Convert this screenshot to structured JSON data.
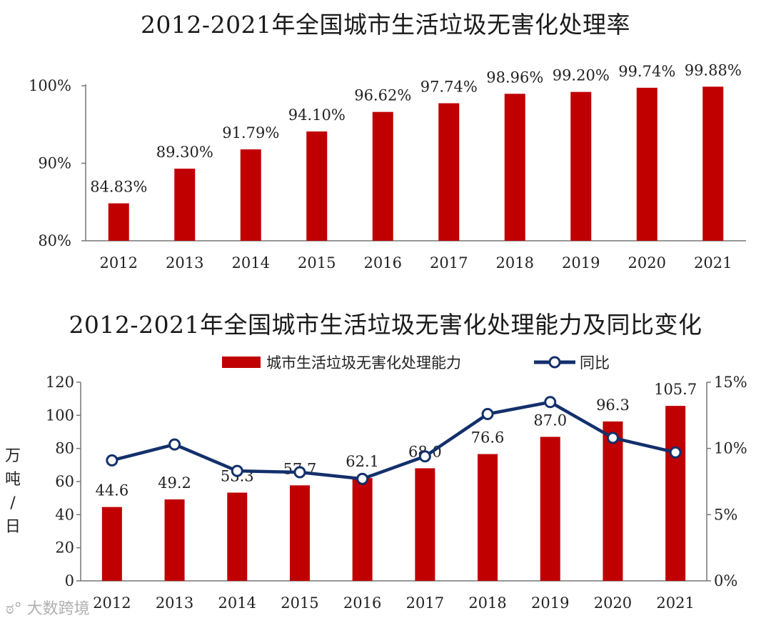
{
  "chart_data": [
    {
      "type": "bar",
      "title": "2012-2021年全国城市生活垃圾无害化处理率",
      "categories": [
        "2012",
        "2013",
        "2014",
        "2015",
        "2016",
        "2017",
        "2018",
        "2019",
        "2020",
        "2021"
      ],
      "values": [
        84.83,
        89.3,
        91.79,
        94.1,
        96.62,
        97.74,
        98.96,
        99.2,
        99.74,
        99.88
      ],
      "data_labels": [
        "84.83%",
        "89.30%",
        "91.79%",
        "94.10%",
        "96.62%",
        "97.74%",
        "98.96%",
        "99.20%",
        "99.74%",
        "99.88%"
      ],
      "ylim": [
        80,
        100
      ],
      "yticks": [
        80,
        90,
        100
      ],
      "ytick_labels": [
        "80%",
        "90%",
        "100%"
      ],
      "grid": false,
      "bar_color": "#C00000"
    },
    {
      "type": "bar+line",
      "title": "2012-2021年全国城市生活垃圾无害化处理能力及同比变化",
      "categories": [
        "2012",
        "2013",
        "2014",
        "2015",
        "2016",
        "2017",
        "2018",
        "2019",
        "2020",
        "2021"
      ],
      "series": [
        {
          "name": "城市生活垃圾无害化处理能力",
          "type": "bar",
          "axis": "left",
          "values": [
            44.6,
            49.2,
            53.3,
            57.7,
            62.1,
            68.0,
            76.6,
            87.0,
            96.3,
            105.7
          ],
          "data_labels": [
            "44.6",
            "49.2",
            "53.3",
            "57.7",
            "62.1",
            "68.0",
            "76.6",
            "87.0",
            "96.3",
            "105.7"
          ],
          "color": "#C00000"
        },
        {
          "name": "同比",
          "type": "line",
          "axis": "right",
          "values": [
            9.1,
            10.3,
            8.3,
            8.2,
            7.7,
            9.4,
            12.6,
            13.5,
            10.8,
            9.7
          ],
          "color": "#13306B"
        }
      ],
      "ylabel": "万吨/日",
      "ylim": [
        0,
        120
      ],
      "yticks": [
        0,
        20,
        40,
        60,
        80,
        100,
        120
      ],
      "ytick_labels": [
        "0",
        "20",
        "40",
        "60",
        "80",
        "100",
        "120"
      ],
      "y2lim": [
        0,
        15
      ],
      "y2ticks": [
        0,
        5,
        10,
        15
      ],
      "y2tick_labels": [
        "0%",
        "5%",
        "10%",
        "15%"
      ],
      "legend": "top-center",
      "grid": false
    }
  ],
  "watermark": "大数跨境"
}
